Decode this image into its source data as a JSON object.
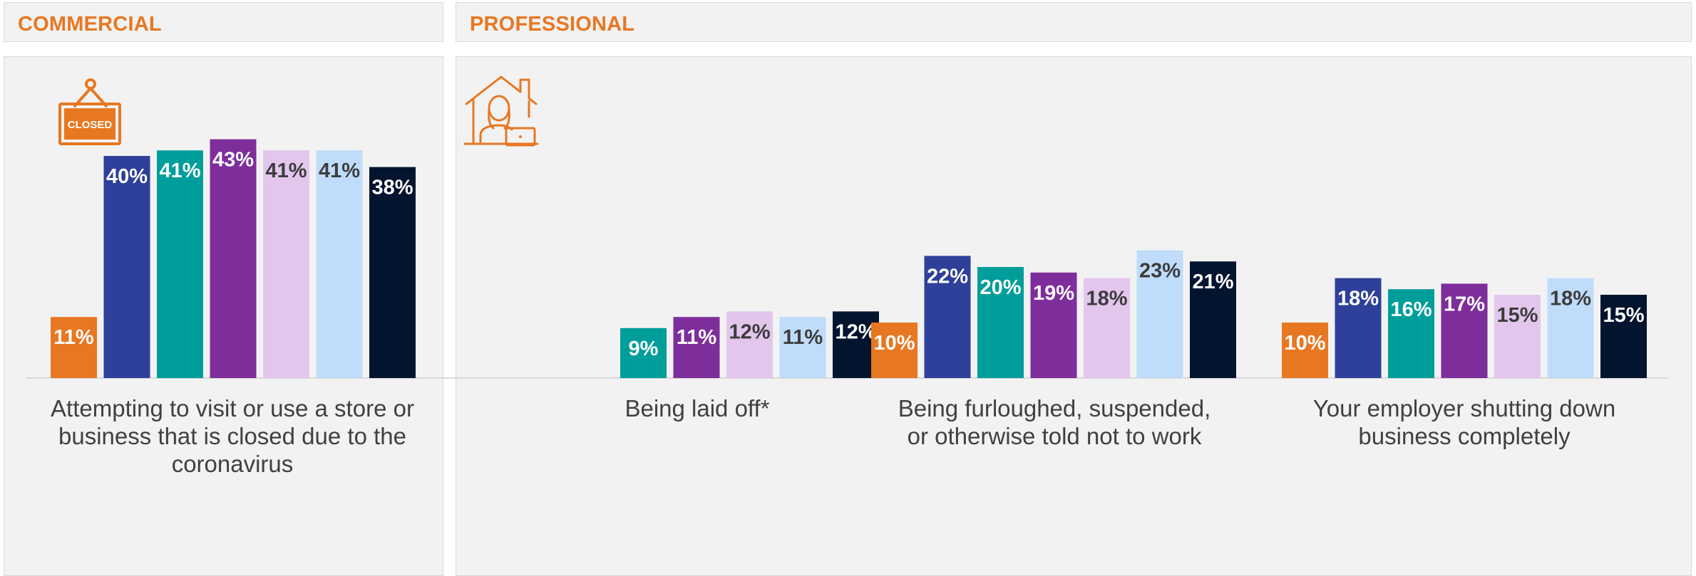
{
  "colors": {
    "accent": "#e87722",
    "panel_bg": "#f2f2f2",
    "series": [
      "#e87722",
      "#2e4099",
      "#009e9a",
      "#7e2e9b",
      "#e3c6ec",
      "#bfdcfa",
      "#03142e"
    ],
    "label_light": "#ffffff",
    "label_dark": "#3c3c3c"
  },
  "sections": {
    "commercial": {
      "title": "COMMERCIAL",
      "icon": "closed-sign-icon",
      "icon_text": "CLOSED"
    },
    "professional": {
      "title": "PROFESSIONAL",
      "icon": "house-worker-icon"
    }
  },
  "chart_data": {
    "type": "bar",
    "groups": [
      {
        "section": "commercial",
        "label": "Attempting to visit or use a store or business that is closed due to the coronavirus",
        "values": [
          11,
          40,
          41,
          43,
          41,
          41,
          38
        ]
      },
      {
        "section": "professional",
        "label": "Being laid off*",
        "values": [
          null,
          null,
          9,
          11,
          12,
          11,
          12
        ]
      },
      {
        "section": "professional",
        "label": "Being furloughed, suspended, or otherwise told not to work",
        "values": [
          10,
          22,
          20,
          19,
          18,
          23,
          21
        ]
      },
      {
        "section": "professional",
        "label": "Your employer shutting down business completely",
        "values": [
          10,
          18,
          16,
          17,
          15,
          18,
          15
        ]
      }
    ],
    "value_suffix": "%",
    "ylim": [
      0,
      45
    ]
  }
}
